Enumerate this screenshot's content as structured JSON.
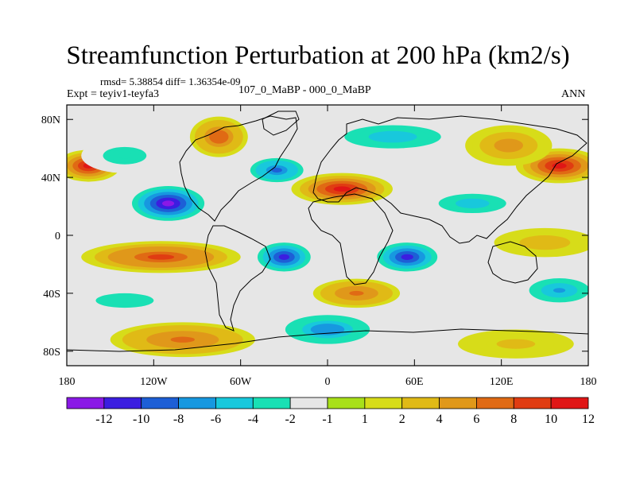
{
  "chart_data": {
    "type": "heatmap",
    "title": "Streamfunction Perturbation at 200 hPa (km2/s)",
    "stats_text": "rmsd= 5.38854 diff= 1.36354e-09",
    "left_label": "Expt = teyiv1-teyfa3",
    "center_label": "107_0_MaBP - 000_0_MaBP",
    "right_label": "ANN",
    "x_range": [
      -180,
      180
    ],
    "y_range": [
      -90,
      90
    ],
    "x_ticks": [
      {
        "value": -180,
        "label": "180"
      },
      {
        "value": -120,
        "label": "120W"
      },
      {
        "value": -60,
        "label": "60W"
      },
      {
        "value": 0,
        "label": "0"
      },
      {
        "value": 60,
        "label": "60E"
      },
      {
        "value": 120,
        "label": "120E"
      },
      {
        "value": 180,
        "label": "180"
      }
    ],
    "y_ticks": [
      {
        "value": 80,
        "label": "80N"
      },
      {
        "value": 40,
        "label": "40N"
      },
      {
        "value": 0,
        "label": "0"
      },
      {
        "value": -40,
        "label": "40S"
      },
      {
        "value": -80,
        "label": "80S"
      }
    ],
    "colorbar": {
      "colors": [
        "#8a19e6",
        "#3b1ee0",
        "#1d5fd6",
        "#1798e0",
        "#18c8dc",
        "#19e0b4",
        "#e6e6e6",
        "#a8e01a",
        "#d7dc19",
        "#e0ba16",
        "#e0981a",
        "#e06a14",
        "#e03c12",
        "#e01616"
      ],
      "labels": [
        "-12",
        "-10",
        "-8",
        "-6",
        "-4",
        "-2",
        "-1",
        "1",
        "2",
        "4",
        "6",
        "8",
        "10",
        "12"
      ]
    },
    "field_blobs": [
      {
        "lon": -165,
        "lat": 48,
        "value": 12,
        "rlon": 22,
        "rlat": 11
      },
      {
        "lon": 160,
        "lat": 48,
        "value": 12,
        "rlon": 30,
        "rlat": 12
      },
      {
        "lon": 125,
        "lat": 62,
        "value": 6,
        "rlon": 30,
        "rlat": 14
      },
      {
        "lon": -75,
        "lat": 68,
        "value": 9,
        "rlon": 20,
        "rlat": 14
      },
      {
        "lon": -140,
        "lat": 55,
        "value": -4,
        "rlon": 30,
        "rlat": 12
      },
      {
        "lon": -110,
        "lat": 22,
        "value": -14,
        "rlon": 25,
        "rlat": 12
      },
      {
        "lon": -35,
        "lat": 45,
        "value": -10,
        "rlon": 22,
        "rlat": 10
      },
      {
        "lon": 10,
        "lat": 32,
        "value": 12,
        "rlon": 35,
        "rlat": 11
      },
      {
        "lon": 45,
        "lat": 68,
        "value": -6,
        "rlon": 50,
        "rlat": 12
      },
      {
        "lon": 100,
        "lat": 22,
        "value": -6,
        "rlon": 35,
        "rlat": 10
      },
      {
        "lon": -115,
        "lat": -15,
        "value": 10,
        "rlon": 55,
        "rlat": 11
      },
      {
        "lon": -30,
        "lat": -15,
        "value": -13,
        "rlon": 22,
        "rlat": 12
      },
      {
        "lon": 55,
        "lat": -15,
        "value": -12,
        "rlon": 25,
        "rlat": 12
      },
      {
        "lon": 150,
        "lat": -5,
        "value": 4,
        "rlon": 35,
        "rlat": 10
      },
      {
        "lon": -140,
        "lat": -45,
        "value": -4,
        "rlon": 40,
        "rlat": 10
      },
      {
        "lon": 20,
        "lat": -40,
        "value": 8,
        "rlon": 30,
        "rlat": 10
      },
      {
        "lon": -100,
        "lat": -72,
        "value": 8,
        "rlon": 50,
        "rlat": 12
      },
      {
        "lon": 0,
        "lat": -65,
        "value": -9,
        "rlon": 35,
        "rlat": 12
      },
      {
        "lon": 160,
        "lat": -38,
        "value": -8,
        "rlon": 25,
        "rlat": 10
      },
      {
        "lon": 130,
        "lat": -75,
        "value": 3,
        "rlon": 40,
        "rlat": 10
      }
    ]
  }
}
